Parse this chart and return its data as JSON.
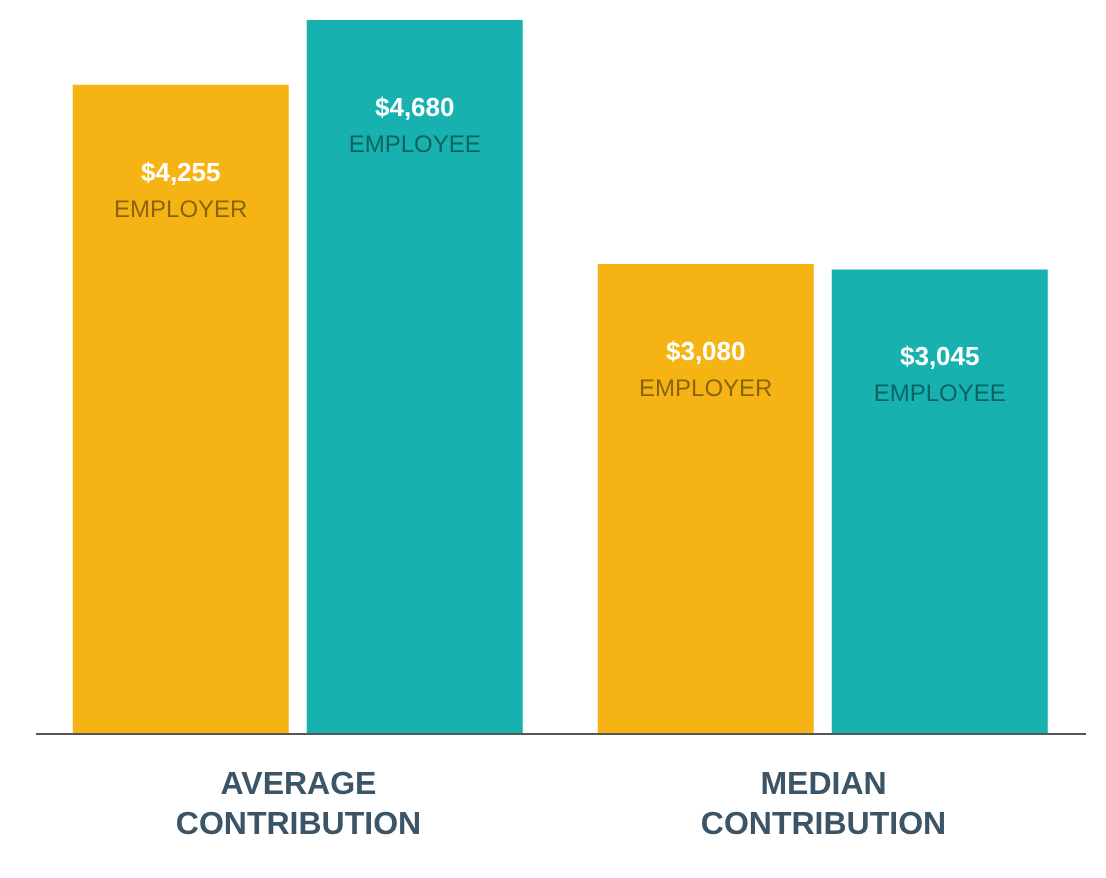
{
  "chart_data": {
    "type": "bar",
    "categories": [
      "AVERAGE CONTRIBUTION",
      "MEDIAN CONTRIBUTION"
    ],
    "series": [
      {
        "name": "EMPLOYER",
        "color": "#f6b414",
        "values": [
          4255,
          3080
        ],
        "value_labels": [
          "$4,255",
          "$3,080"
        ]
      },
      {
        "name": "EMPLOYEE",
        "color": "#17b2b0",
        "values": [
          4680,
          3045
        ],
        "value_labels": [
          "$4,680",
          "$3,045"
        ]
      }
    ],
    "legend": false,
    "grid": false
  }
}
